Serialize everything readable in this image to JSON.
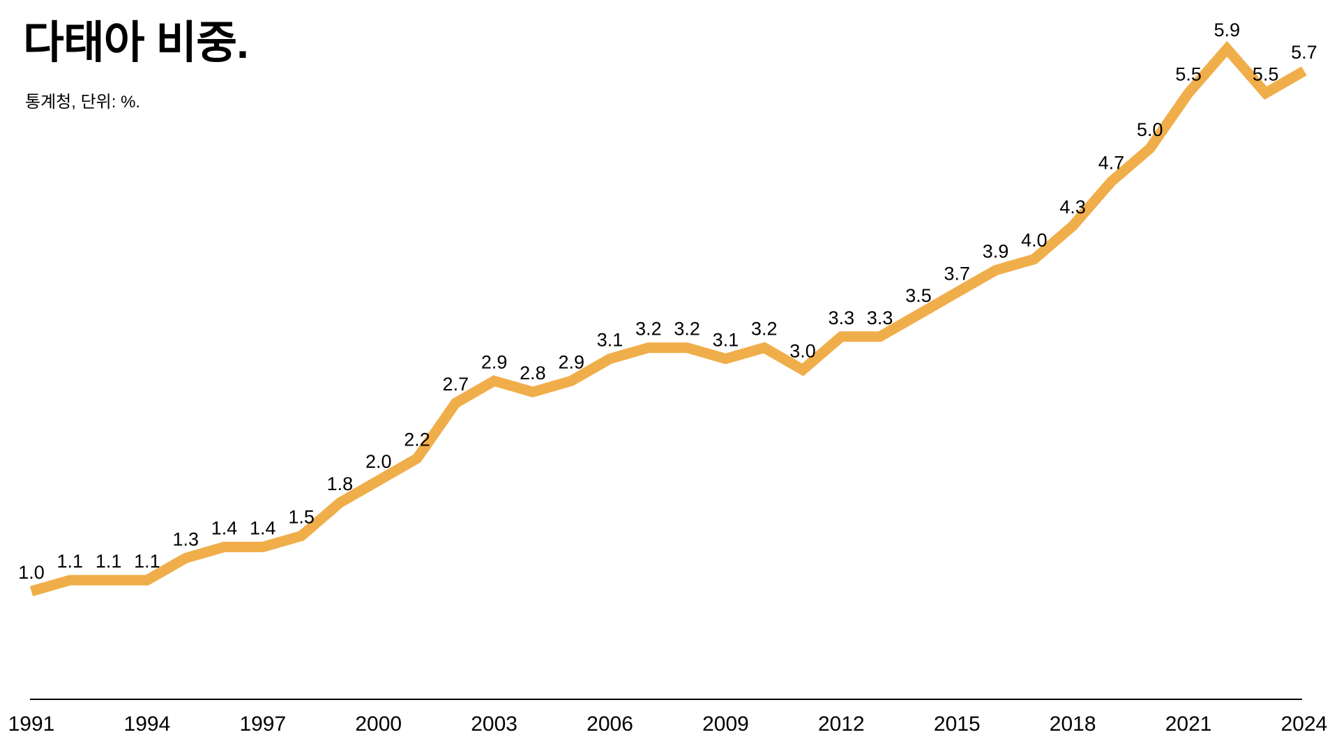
{
  "header": {
    "title": "다태아 비중.",
    "source": "통계청, 단위: %."
  },
  "chart_data": {
    "type": "line",
    "title": "다태아 비중.",
    "source_note": "통계청, 단위: %.",
    "unit": "%",
    "x": [
      1991,
      1992,
      1993,
      1994,
      1995,
      1996,
      1997,
      1998,
      1999,
      2000,
      2001,
      2002,
      2003,
      2004,
      2005,
      2006,
      2007,
      2008,
      2009,
      2010,
      2011,
      2012,
      2013,
      2014,
      2015,
      2016,
      2017,
      2018,
      2019,
      2020,
      2021,
      2022,
      2023,
      2024
    ],
    "values": [
      1.0,
      1.1,
      1.1,
      1.1,
      1.3,
      1.4,
      1.4,
      1.5,
      1.8,
      2.0,
      2.2,
      2.7,
      2.9,
      2.8,
      2.9,
      3.1,
      3.2,
      3.2,
      3.1,
      3.2,
      3.0,
      3.3,
      3.3,
      3.5,
      3.7,
      3.9,
      4.0,
      4.3,
      4.7,
      5.0,
      5.5,
      5.9,
      5.5,
      5.7
    ],
    "x_tick_labels": [
      "1991",
      "1994",
      "1997",
      "2000",
      "2003",
      "2006",
      "2009",
      "2012",
      "2015",
      "2018",
      "2021",
      "2024"
    ],
    "x_tick_years": [
      1991,
      1994,
      1997,
      2000,
      2003,
      2006,
      2009,
      2012,
      2015,
      2018,
      2021,
      2024
    ],
    "xlim": [
      1991,
      2024
    ],
    "ylim": [
      1.0,
      5.9
    ],
    "data_labels": true,
    "grid": false,
    "legend": "none",
    "line_color": "#F0AE4A",
    "axis_color": "#000000",
    "label_color": "#000000"
  }
}
